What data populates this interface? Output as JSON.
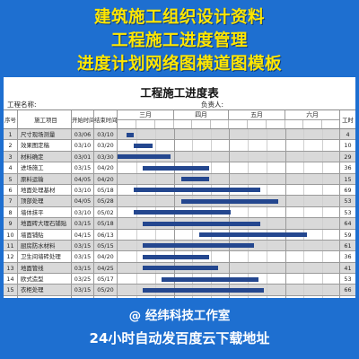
{
  "banner": {
    "line1": "建筑施工组织设计资料",
    "line2": "工程施工进度管理",
    "line3": "进度计划网络图横道图模板"
  },
  "sheet": {
    "title": "工程施工进度表",
    "project_label": "工程名称:",
    "owner_label": "负责人:",
    "headers": {
      "seq": "序号",
      "name": "施工项目",
      "start": "开始时间",
      "end": "结束时间",
      "days": "工时"
    },
    "months": [
      "三月",
      "四月",
      "五月",
      "六月"
    ],
    "bar_color": "#24478f",
    "timeline_start": "03-01",
    "timeline_end": "06-30",
    "rows": [
      {
        "seq": "1",
        "name": "尺寸现场测量",
        "start": "03/06",
        "end": "03/10",
        "days": "4"
      },
      {
        "seq": "2",
        "name": "效果图定稿",
        "start": "03/10",
        "end": "03/20",
        "days": "10"
      },
      {
        "seq": "3",
        "name": "材料确定",
        "start": "03/01",
        "end": "03/30",
        "days": "29"
      },
      {
        "seq": "4",
        "name": "进场施工",
        "start": "03/15",
        "end": "04/20",
        "days": "36"
      },
      {
        "seq": "5",
        "name": "原料运输",
        "start": "04/05",
        "end": "04/20",
        "days": "15"
      },
      {
        "seq": "6",
        "name": "地面处理基材",
        "start": "03/10",
        "end": "05/18",
        "days": "69"
      },
      {
        "seq": "7",
        "name": "顶部处理",
        "start": "04/05",
        "end": "05/28",
        "days": "53"
      },
      {
        "seq": "8",
        "name": "墙体抹平",
        "start": "03/10",
        "end": "05/02",
        "days": "53"
      },
      {
        "seq": "9",
        "name": "地面砖大理石铺贴",
        "start": "03/15",
        "end": "05/18",
        "days": "64"
      },
      {
        "seq": "10",
        "name": "墙面铺贴",
        "start": "04/15",
        "end": "06/13",
        "days": "59"
      },
      {
        "seq": "11",
        "name": "厨房防水材料",
        "start": "03/15",
        "end": "05/15",
        "days": "61"
      },
      {
        "seq": "12",
        "name": "卫生间墙砖处理",
        "start": "03/15",
        "end": "04/20",
        "days": "36"
      },
      {
        "seq": "13",
        "name": "地面管线",
        "start": "03/15",
        "end": "04/25",
        "days": "41"
      },
      {
        "seq": "14",
        "name": "欧式造型",
        "start": "03/25",
        "end": "05/17",
        "days": "53"
      },
      {
        "seq": "15",
        "name": "衣柜处理",
        "start": "03/15",
        "end": "05/20",
        "days": "66"
      },
      {
        "seq": "16",
        "name": "踢脚线安装打磨",
        "start": "05/01",
        "end": "06/20",
        "days": "50"
      }
    ]
  },
  "footer": {
    "brand": "@ 经纬科技工作室",
    "slogan": "24小时自动发百度云下载地址"
  }
}
